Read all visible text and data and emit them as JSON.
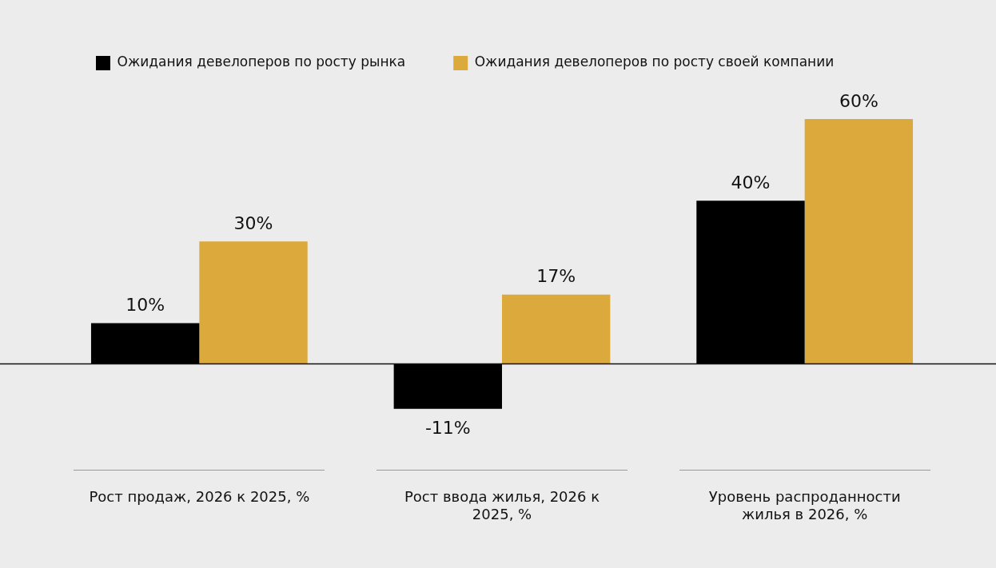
{
  "chart_data": {
    "type": "bar",
    "categories": [
      "Рост продаж, 2026 к 2025, %",
      "Рост ввода жилья, 2026 к 2025, %",
      "Уровень распроданности жилья в 2026, %"
    ],
    "series": [
      {
        "name": "Ожидания девелоперов по росту рынка",
        "color": "#000000",
        "values": [
          10,
          -11,
          40
        ],
        "value_labels": [
          "10%",
          "-11%",
          "40%"
        ]
      },
      {
        "name": "Ожидания девелоперов по росту своей компании",
        "color": "#dca93c",
        "values": [
          30,
          17,
          60
        ],
        "value_labels": [
          "30%",
          "17%",
          "60%"
        ]
      }
    ],
    "legend": "top left",
    "grid": false
  }
}
